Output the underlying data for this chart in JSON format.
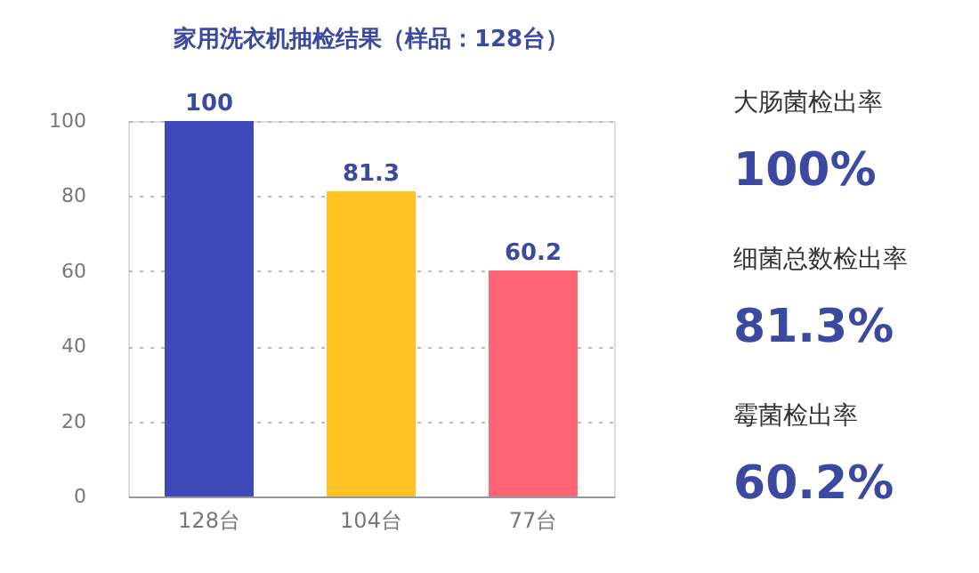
{
  "chart_data": {
    "type": "bar",
    "title": "家用洗衣机抽检结果（样品：128台）",
    "categories": [
      "128台",
      "104台",
      "77台"
    ],
    "values": [
      100,
      81.3,
      60.2
    ],
    "colors": [
      "#3f48b8",
      "#fec322",
      "#fe6577"
    ],
    "data_labels": true,
    "ylim": [
      0,
      100
    ],
    "yticks": [
      0,
      20,
      40,
      60,
      80,
      100
    ],
    "grid": "y",
    "annotations": [
      "大肠菌检出率",
      "100%",
      "细菌总数检出率",
      "81.3%",
      "霉菌检出率",
      "60.2%"
    ]
  }
}
